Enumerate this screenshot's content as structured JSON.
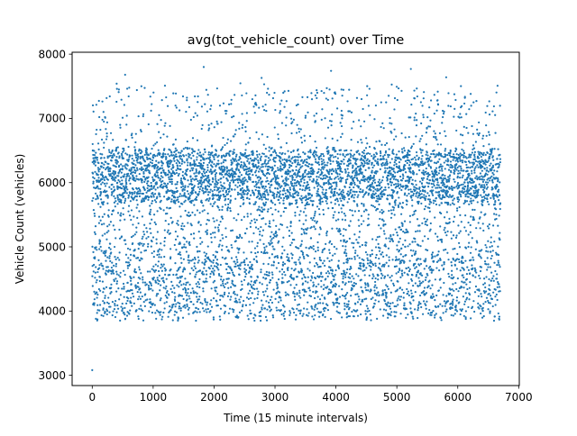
{
  "chart_data": {
    "type": "scatter",
    "title": "avg(tot_vehicle_count) over Time",
    "xlabel": "Time (15 minute intervals)",
    "ylabel": "Vehicle Count (vehicles)",
    "xlim": [
      -330,
      7010
    ],
    "ylim": [
      2840,
      8030
    ],
    "xticks": [
      0,
      1000,
      2000,
      3000,
      4000,
      5000,
      6000,
      7000
    ],
    "xtick_labels": [
      "0",
      "1000",
      "2000",
      "3000",
      "4000",
      "5000",
      "6000",
      "7000"
    ],
    "yticks": [
      3000,
      4000,
      5000,
      6000,
      7000,
      8000
    ],
    "ytick_labels": [
      "3000",
      "4000",
      "5000",
      "6000",
      "7000",
      "8000"
    ],
    "grid": false,
    "legend": "none",
    "marker_color": "#1f77b4",
    "n_points": 6700,
    "dense_band": [
      5700,
      6500
    ],
    "low_band": [
      3900,
      4900
    ],
    "value_range": [
      3850,
      7800
    ],
    "outlier_low": {
      "x": 0,
      "y": 3080
    },
    "notable_high_points": [
      {
        "x": 540,
        "y": 7680
      },
      {
        "x": 1830,
        "y": 7800
      },
      {
        "x": 2780,
        "y": 7630
      },
      {
        "x": 3920,
        "y": 7740
      },
      {
        "x": 5230,
        "y": 7770
      },
      {
        "x": 5810,
        "y": 7640
      }
    ]
  }
}
